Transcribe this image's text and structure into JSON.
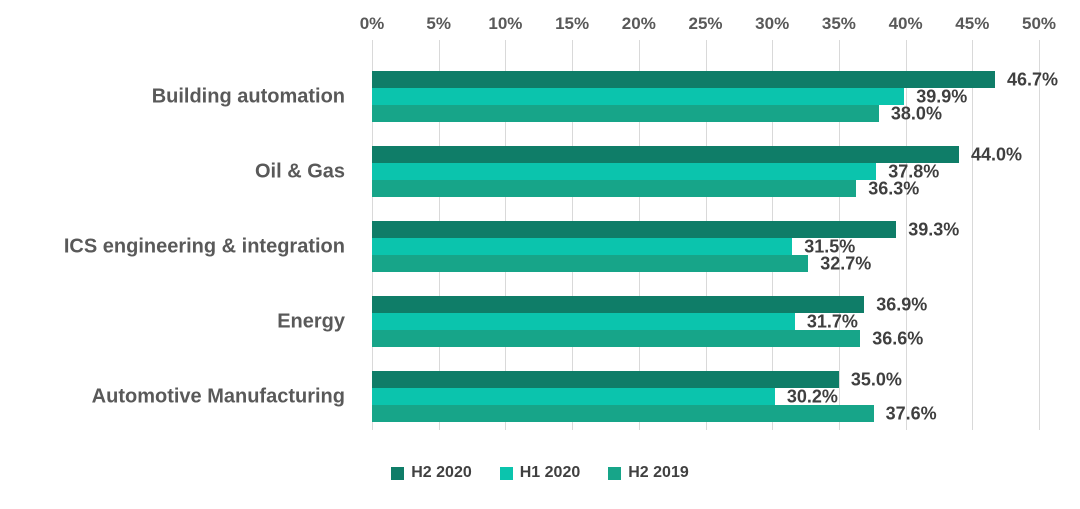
{
  "chart_data": {
    "type": "bar",
    "orientation": "horizontal",
    "title": "",
    "categories": [
      "Building automation",
      "Oil & Gas",
      "ICS engineering & integration",
      "Energy",
      "Automotive Manufacturing"
    ],
    "series": [
      {
        "name": "H2 2020",
        "color": "#0f7d68",
        "values": [
          46.7,
          44.0,
          39.3,
          36.9,
          35.0
        ]
      },
      {
        "name": "H1 2020",
        "color": "#0bc4ad",
        "values": [
          39.9,
          37.8,
          31.5,
          31.7,
          30.2
        ]
      },
      {
        "name": "H2 2019",
        "color": "#17a589",
        "values": [
          38.0,
          36.3,
          32.7,
          36.6,
          37.6
        ]
      }
    ],
    "data_labels": {
      "format": "one_decimal_percent",
      "shown": [
        [
          "46.7%",
          "44.0%",
          "39.3%",
          "36.9%",
          "35.0%"
        ],
        [
          "39.9%",
          "37.8%",
          "31.5%",
          "31.7%",
          "30.2%"
        ],
        [
          "38.0%",
          "36.3%",
          "32.7%",
          "36.6%",
          "37.6%"
        ]
      ]
    },
    "x_axis": {
      "position": "top",
      "min": 0,
      "max": 50,
      "tick_step": 5,
      "ticks": [
        "0%",
        "5%",
        "10%",
        "15%",
        "20%",
        "25%",
        "30%",
        "35%",
        "40%",
        "45%",
        "50%"
      ]
    },
    "grid": true,
    "legend": {
      "position": "bottom",
      "entries": [
        "H2 2020",
        "H1 2020",
        "H2 2019"
      ]
    }
  },
  "colors": {
    "background": "#ffffff",
    "gridline": "#d9d9d9",
    "axis_text": "#595959",
    "category_text": "#595959",
    "data_label_text": "#3f3f3f",
    "legend_text": "#404040"
  }
}
